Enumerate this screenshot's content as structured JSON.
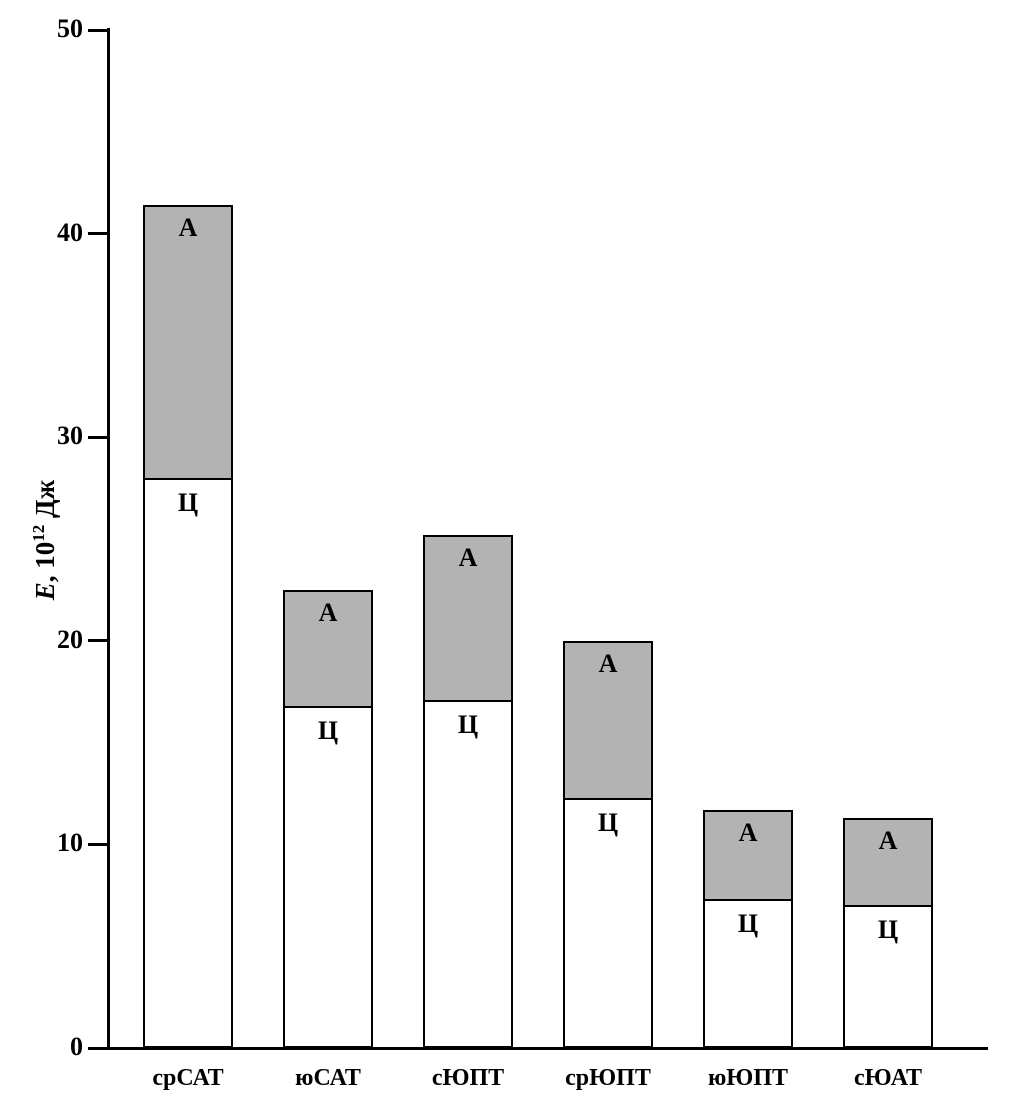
{
  "chart_data": {
    "type": "bar",
    "stacked": true,
    "title": "",
    "xlabel": "",
    "ylabel": "E, 10¹² Дж",
    "ylabel_parts": {
      "symbol": "E",
      "mid": ", 10",
      "superscript": "12",
      "unit": " Дж"
    },
    "ylim": [
      0,
      50
    ],
    "yticks": [
      0,
      10,
      20,
      30,
      40,
      50
    ],
    "grid": false,
    "legend_position": "none",
    "categories": [
      "срСАТ",
      "юСАТ",
      "сЮПТ",
      "срЮПТ",
      "юЮПТ",
      "сЮАТ"
    ],
    "series": [
      {
        "name": "Ц",
        "label": "Ц",
        "color": "#ffffff",
        "values": [
          28.0,
          16.8,
          17.1,
          12.3,
          7.3,
          7.0
        ]
      },
      {
        "name": "А",
        "label": "А",
        "color": "#b3b3b3",
        "values": [
          13.5,
          5.8,
          8.2,
          7.8,
          4.5,
          4.4
        ]
      }
    ],
    "totals": [
      41.5,
      22.6,
      25.3,
      20.1,
      11.8,
      11.4
    ],
    "bar_outline_color": "#000000"
  }
}
